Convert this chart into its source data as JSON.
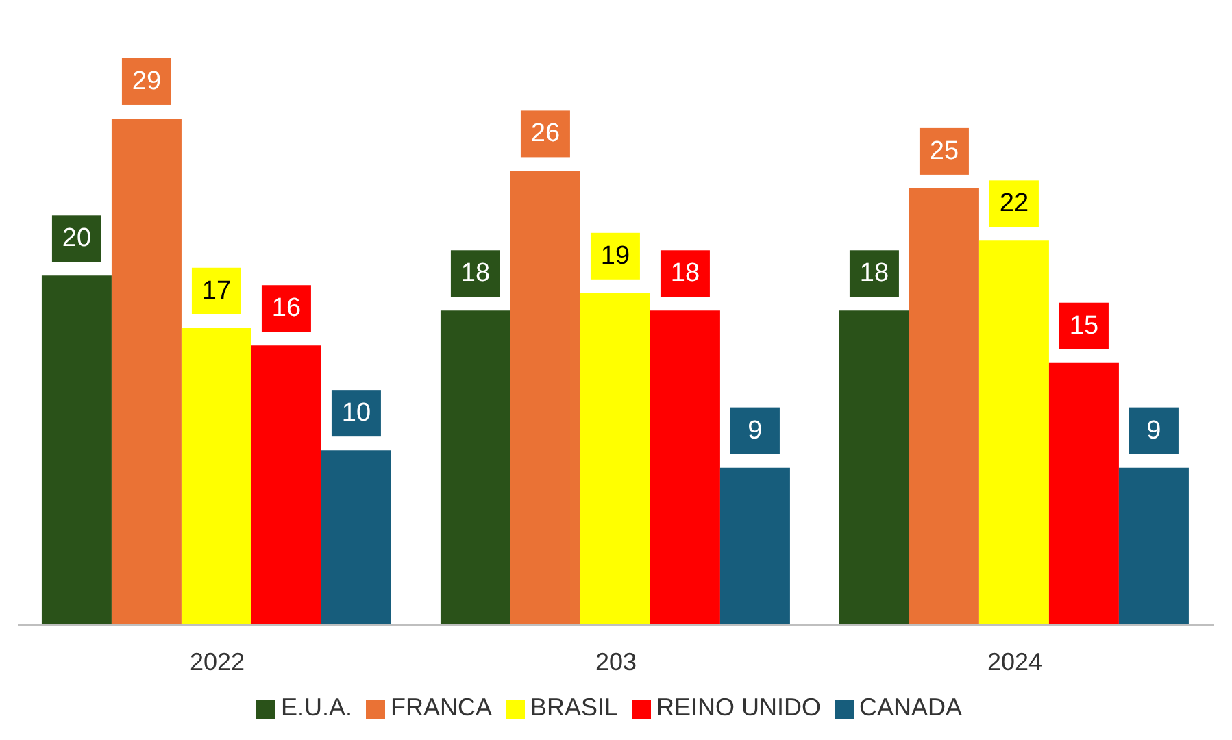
{
  "chart_data": {
    "type": "bar",
    "categories": [
      "2022",
      "203",
      "2024"
    ],
    "series": [
      {
        "name": "E.U.A.",
        "color": "#2a5219",
        "values": [
          20,
          18,
          18
        ]
      },
      {
        "name": "FRANCA",
        "color": "#ea7235",
        "values": [
          29,
          26,
          25
        ]
      },
      {
        "name": "BRASIL",
        "color": "#ffff00",
        "values": [
          17,
          19,
          22
        ]
      },
      {
        "name": "REINO UNIDO",
        "color": "#ff0000",
        "values": [
          16,
          18,
          15
        ]
      },
      {
        "name": "CANADA",
        "color": "#175d7c",
        "values": [
          10,
          9,
          9
        ]
      }
    ],
    "data_labels": true,
    "legend": "bottom",
    "tick_labels": "x",
    "grid": false
  }
}
